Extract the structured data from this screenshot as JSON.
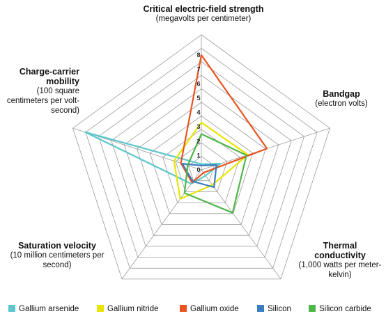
{
  "chart_data": {
    "type": "radar",
    "axes": [
      {
        "title": "Critical electric-field strength",
        "unit": "(megavolts per centimeter)"
      },
      {
        "title": "Bandgap",
        "unit": "(electron volts)"
      },
      {
        "title": "Thermal conductivity",
        "unit": "(1,000 watts per meter-kelvin)"
      },
      {
        "title": "Saturation velocity",
        "unit": "(10 million centimeters per second)"
      },
      {
        "title": "Charge-carrier mobility",
        "unit": "(100 square centimeters per volt-second)"
      }
    ],
    "ticks": [
      "0",
      "1",
      "2",
      "3",
      "4",
      "5",
      "6",
      "7",
      "8"
    ],
    "rmax": 8,
    "grid": true,
    "series": [
      {
        "name": "Gallium arsenide",
        "color": "#5ec7cc",
        "values": [
          0.4,
          1.4,
          0.5,
          1.2,
          8.5
        ]
      },
      {
        "name": "Gallium nitride",
        "color": "#e8e400",
        "values": [
          3.3,
          3.4,
          1.3,
          2.5,
          2.0
        ]
      },
      {
        "name": "Gallium oxide",
        "color": "#e9531f",
        "values": [
          8.0,
          4.8,
          0.25,
          1.1,
          1.5
        ]
      },
      {
        "name": "Silicon",
        "color": "#3c7cc0",
        "values": [
          0.3,
          1.1,
          1.5,
          1.0,
          1.4
        ]
      },
      {
        "name": "Silicon carbide",
        "color": "#4fb748",
        "values": [
          2.5,
          3.3,
          3.7,
          2.0,
          1.0
        ]
      }
    ]
  }
}
